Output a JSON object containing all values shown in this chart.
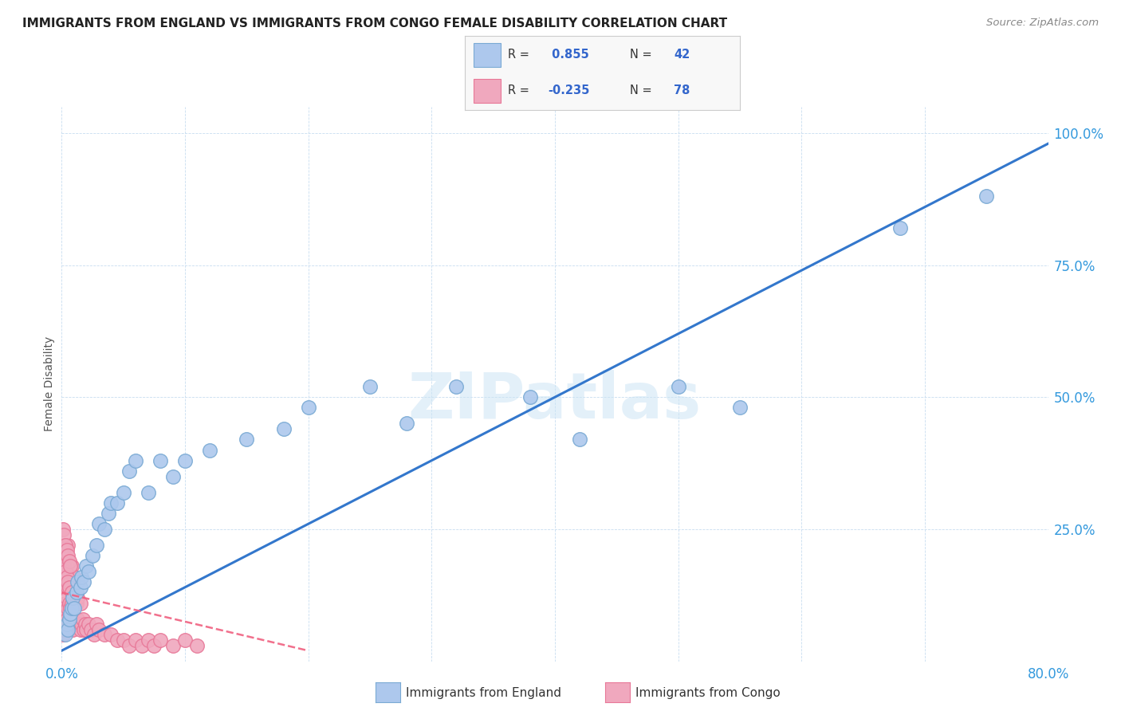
{
  "title": "IMMIGRANTS FROM ENGLAND VS IMMIGRANTS FROM CONGO FEMALE DISABILITY CORRELATION CHART",
  "source": "Source: ZipAtlas.com",
  "ylabel": "Female Disability",
  "xlim": [
    0.0,
    0.8
  ],
  "ylim": [
    0.0,
    1.05
  ],
  "xticks": [
    0.0,
    0.1,
    0.2,
    0.3,
    0.4,
    0.5,
    0.6,
    0.7,
    0.8
  ],
  "yticks": [
    0.0,
    0.25,
    0.5,
    0.75,
    1.0
  ],
  "ytick_labels": [
    "",
    "25.0%",
    "50.0%",
    "75.0%",
    "100.0%"
  ],
  "england_color": "#adc8ed",
  "congo_color": "#f0a8be",
  "england_edge": "#7aaad4",
  "congo_edge": "#e87898",
  "trendline_england_color": "#3377cc",
  "trendline_congo_color": "#f06080",
  "R_england": 0.855,
  "N_england": 42,
  "R_congo": -0.235,
  "N_congo": 78,
  "legend_label_england": "Immigrants from England",
  "legend_label_congo": "Immigrants from Congo",
  "watermark": "ZIPatlas",
  "england_x": [
    0.003,
    0.004,
    0.005,
    0.006,
    0.007,
    0.008,
    0.009,
    0.01,
    0.012,
    0.013,
    0.015,
    0.016,
    0.018,
    0.02,
    0.022,
    0.025,
    0.028,
    0.03,
    0.035,
    0.038,
    0.04,
    0.045,
    0.05,
    0.055,
    0.06,
    0.07,
    0.08,
    0.09,
    0.1,
    0.12,
    0.15,
    0.18,
    0.2,
    0.25,
    0.28,
    0.32,
    0.38,
    0.42,
    0.5,
    0.55,
    0.68,
    0.75
  ],
  "england_y": [
    0.05,
    0.07,
    0.06,
    0.08,
    0.09,
    0.1,
    0.12,
    0.1,
    0.13,
    0.15,
    0.14,
    0.16,
    0.15,
    0.18,
    0.17,
    0.2,
    0.22,
    0.26,
    0.25,
    0.28,
    0.3,
    0.3,
    0.32,
    0.36,
    0.38,
    0.32,
    0.38,
    0.35,
    0.38,
    0.4,
    0.42,
    0.44,
    0.48,
    0.52,
    0.45,
    0.52,
    0.5,
    0.42,
    0.52,
    0.48,
    0.82,
    0.88
  ],
  "congo_x": [
    0.001,
    0.001,
    0.001,
    0.002,
    0.002,
    0.002,
    0.002,
    0.003,
    0.003,
    0.003,
    0.003,
    0.004,
    0.004,
    0.004,
    0.005,
    0.005,
    0.005,
    0.005,
    0.006,
    0.006,
    0.006,
    0.007,
    0.007,
    0.007,
    0.008,
    0.008,
    0.008,
    0.009,
    0.009,
    0.01,
    0.01,
    0.01,
    0.011,
    0.011,
    0.012,
    0.012,
    0.013,
    0.013,
    0.014,
    0.015,
    0.015,
    0.016,
    0.017,
    0.018,
    0.019,
    0.02,
    0.022,
    0.024,
    0.026,
    0.028,
    0.03,
    0.035,
    0.04,
    0.045,
    0.05,
    0.055,
    0.06,
    0.065,
    0.07,
    0.075,
    0.08,
    0.09,
    0.1,
    0.11,
    0.001,
    0.001,
    0.002,
    0.002,
    0.003,
    0.003,
    0.004,
    0.004,
    0.005,
    0.005,
    0.006,
    0.006,
    0.007,
    0.008
  ],
  "congo_y": [
    0.05,
    0.08,
    0.15,
    0.06,
    0.1,
    0.14,
    0.2,
    0.07,
    0.11,
    0.16,
    0.22,
    0.08,
    0.12,
    0.18,
    0.06,
    0.1,
    0.14,
    0.22,
    0.07,
    0.11,
    0.16,
    0.06,
    0.1,
    0.15,
    0.07,
    0.11,
    0.18,
    0.06,
    0.12,
    0.07,
    0.11,
    0.16,
    0.08,
    0.13,
    0.07,
    0.11,
    0.08,
    0.12,
    0.07,
    0.06,
    0.11,
    0.07,
    0.08,
    0.06,
    0.07,
    0.06,
    0.07,
    0.06,
    0.05,
    0.07,
    0.06,
    0.05,
    0.05,
    0.04,
    0.04,
    0.03,
    0.04,
    0.03,
    0.04,
    0.03,
    0.04,
    0.03,
    0.04,
    0.03,
    0.25,
    0.2,
    0.24,
    0.18,
    0.22,
    0.17,
    0.21,
    0.16,
    0.2,
    0.15,
    0.19,
    0.14,
    0.18,
    0.13
  ]
}
